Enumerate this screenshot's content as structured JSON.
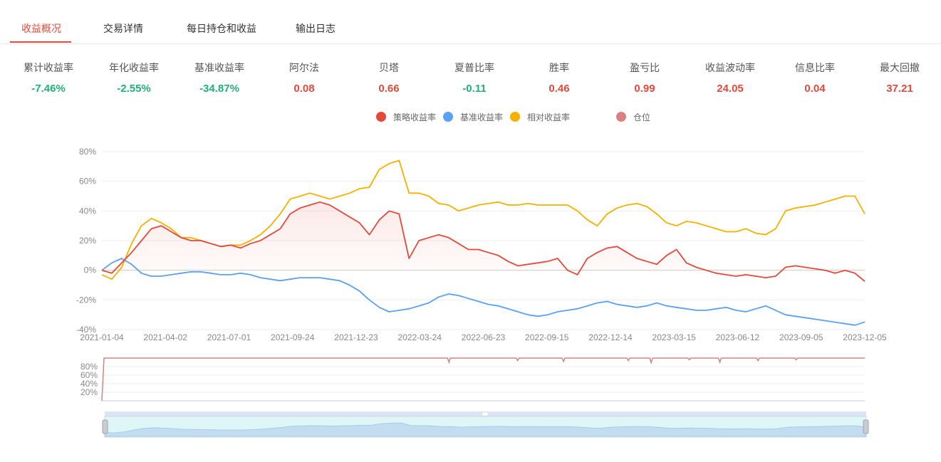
{
  "tabs": [
    {
      "label": "收益概况",
      "active": true
    },
    {
      "label": "交易详情",
      "active": false
    },
    {
      "label": "每日持仓和收益",
      "active": false
    },
    {
      "label": "输出日志",
      "active": false
    }
  ],
  "metrics": [
    {
      "label": "累计收益率",
      "value": "-7.46%",
      "color": "#20b177"
    },
    {
      "label": "年化收益率",
      "value": "-2.55%",
      "color": "#20b177"
    },
    {
      "label": "基准收益率",
      "value": "-34.87%",
      "color": "#20b177"
    },
    {
      "label": "阿尔法",
      "value": "0.08",
      "color": "#e5493a"
    },
    {
      "label": "贝塔",
      "value": "0.66",
      "color": "#e5493a"
    },
    {
      "label": "夏普比率",
      "value": "-0.11",
      "color": "#20b177"
    },
    {
      "label": "胜率",
      "value": "0.46",
      "color": "#e5493a"
    },
    {
      "label": "盈亏比",
      "value": "0.99",
      "color": "#e5493a"
    },
    {
      "label": "收益波动率",
      "value": "24.05",
      "color": "#e5493a"
    },
    {
      "label": "信息比率",
      "value": "0.04",
      "color": "#e5493a"
    },
    {
      "label": "最大回撤",
      "value": "37.21",
      "color": "#e5493a"
    }
  ],
  "legend": [
    {
      "name": "策略收益率",
      "color": "#e5493a"
    },
    {
      "name": "基准收益率",
      "color": "#5aa0f5"
    },
    {
      "name": "相对收益率",
      "color": "#f5b000"
    },
    {
      "name": "仓位",
      "color": "#d98080"
    }
  ],
  "chart_data": [
    {
      "type": "line",
      "x_ticks": [
        "2021-01-04",
        "2021-04-02",
        "2021-07-01",
        "2021-09-24",
        "2021-12-23",
        "2022-03-24",
        "2022-06-23",
        "2022-09-15",
        "2022-12-14",
        "2023-03-15",
        "2023-06-12",
        "2023-09-05",
        "2023-12-05"
      ],
      "ylim": [
        -40,
        80
      ],
      "y_ticks": [
        "80%",
        "60%",
        "40%",
        "20%",
        "0%",
        "-20%",
        "-40%"
      ],
      "grid": true,
      "legend_position": "top-center",
      "series": [
        {
          "name": "策略收益率",
          "color": "#e5493a",
          "area_fill": true,
          "values": [
            0,
            -2,
            5,
            12,
            20,
            28,
            30,
            26,
            22,
            20,
            20,
            18,
            16,
            17,
            15,
            18,
            20,
            24,
            28,
            38,
            42,
            44,
            46,
            44,
            40,
            36,
            32,
            24,
            34,
            40,
            38,
            8,
            20,
            22,
            24,
            22,
            18,
            14,
            14,
            12,
            10,
            6,
            3,
            4,
            5,
            6,
            8,
            0,
            -3,
            8,
            12,
            15,
            16,
            12,
            8,
            6,
            4,
            10,
            14,
            5,
            2,
            0,
            -2,
            -3,
            -4,
            -3,
            -4,
            -5,
            -4,
            2,
            3,
            2,
            1,
            0,
            -2,
            0,
            -2,
            -7.46
          ]
        },
        {
          "name": "基准收益率",
          "color": "#5aa0f5",
          "area_fill": false,
          "values": [
            0,
            5,
            8,
            4,
            -2,
            -4,
            -4,
            -3,
            -2,
            -1,
            -1,
            -2,
            -3,
            -3,
            -2,
            -3,
            -5,
            -6,
            -7,
            -6,
            -5,
            -5,
            -5,
            -6,
            -7,
            -10,
            -14,
            -20,
            -25,
            -28,
            -27,
            -26,
            -24,
            -22,
            -18,
            -16,
            -17,
            -19,
            -21,
            -23,
            -24,
            -26,
            -28,
            -30,
            -31,
            -30,
            -28,
            -27,
            -26,
            -24,
            -22,
            -21,
            -23,
            -24,
            -25,
            -24,
            -22,
            -24,
            -25,
            -26,
            -27,
            -27,
            -26,
            -25,
            -27,
            -28,
            -26,
            -24,
            -27,
            -30,
            -31,
            -32,
            -33,
            -34,
            -35,
            -36,
            -37,
            -34.87
          ]
        },
        {
          "name": "相对收益率",
          "color": "#f5b000",
          "area_fill": false,
          "values": [
            -3,
            -6,
            2,
            18,
            30,
            35,
            32,
            28,
            22,
            22,
            20,
            18,
            16,
            17,
            17,
            20,
            24,
            30,
            38,
            48,
            50,
            52,
            50,
            48,
            50,
            52,
            55,
            56,
            68,
            72,
            74,
            52,
            52,
            50,
            45,
            44,
            40,
            42,
            44,
            45,
            46,
            44,
            44,
            45,
            44,
            44,
            44,
            44,
            40,
            34,
            30,
            38,
            42,
            44,
            45,
            43,
            38,
            32,
            30,
            33,
            32,
            30,
            28,
            26,
            26,
            28,
            25,
            24,
            28,
            40,
            42,
            43,
            44,
            46,
            48,
            50,
            50,
            38
          ]
        }
      ]
    },
    {
      "type": "area",
      "name": "仓位",
      "y_ticks": [
        "80%",
        "60%",
        "40%",
        "20%"
      ],
      "ylim": [
        0,
        100
      ],
      "base_level": 100,
      "values_note": "",
      "dips": [
        {
          "t": 0.455,
          "value": 90
        },
        {
          "t": 0.545,
          "value": 94
        },
        {
          "t": 0.605,
          "value": 92
        },
        {
          "t": 0.69,
          "value": 94
        },
        {
          "t": 0.72,
          "value": 89
        },
        {
          "t": 0.77,
          "value": 96
        },
        {
          "t": 0.81,
          "value": 90
        },
        {
          "t": 0.86,
          "value": 94
        },
        {
          "t": 0.91,
          "value": 96
        }
      ]
    }
  ]
}
